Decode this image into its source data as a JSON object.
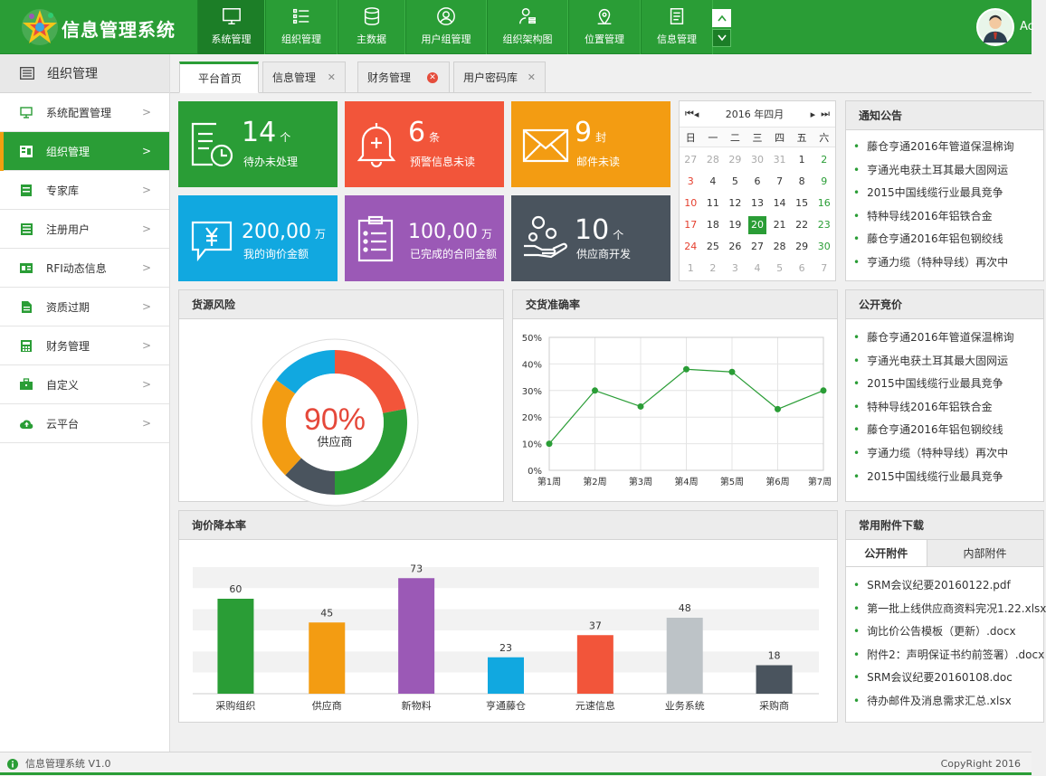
{
  "app": {
    "title": "信息管理系统",
    "user_initial": "Ac"
  },
  "nav": [
    {
      "label": "系统管理",
      "icon": "monitor-icon"
    },
    {
      "label": "组织管理",
      "icon": "list-icon"
    },
    {
      "label": "主数据",
      "icon": "database-icon"
    },
    {
      "label": "用户组管理",
      "icon": "user-circle-icon"
    },
    {
      "label": "组织架构图",
      "icon": "org-user-icon"
    },
    {
      "label": "位置管理",
      "icon": "location-icon"
    },
    {
      "label": "信息管理",
      "icon": "document-icon"
    }
  ],
  "sidebar": {
    "header": "组织管理",
    "items": [
      {
        "label": "系统配置管理",
        "icon": "monitor-icon"
      },
      {
        "label": "组织管理",
        "icon": "org-icon"
      },
      {
        "label": "专家库",
        "icon": "book-icon"
      },
      {
        "label": "注册用户",
        "icon": "list-icon"
      },
      {
        "label": "RFI动态信息",
        "icon": "card-icon"
      },
      {
        "label": "资质过期",
        "icon": "file-icon"
      },
      {
        "label": "财务管理",
        "icon": "calculator-icon"
      },
      {
        "label": "自定义",
        "icon": "toolbox-icon"
      },
      {
        "label": "云平台",
        "icon": "cloud-upload-icon"
      }
    ]
  },
  "tabs": [
    {
      "label": "平台首页"
    },
    {
      "label": "信息管理"
    },
    {
      "label": "财务管理"
    },
    {
      "label": "用户密码库"
    }
  ],
  "tiles": [
    {
      "value": "14",
      "unit": "个",
      "sub": "待办未处理",
      "color": "#2a9d36"
    },
    {
      "value": "6",
      "unit": "条",
      "sub": "预警信息未读",
      "color": "#f2553a"
    },
    {
      "value": "9",
      "unit": "封",
      "sub": "邮件未读",
      "color": "#f39c12"
    },
    {
      "value": "200,00",
      "unit": "万",
      "sub": "我的询价金额",
      "color": "#11a8e0"
    },
    {
      "value": "100,00",
      "unit": "万",
      "sub": "已完成的合同金额",
      "color": "#9b59b6"
    },
    {
      "value": "10",
      "unit": "个",
      "sub": "供应商开发",
      "color": "#4a545e"
    }
  ],
  "calendar": {
    "title": "2016 年四月",
    "weekdays": [
      "日",
      "一",
      "二",
      "三",
      "四",
      "五",
      "六"
    ],
    "days": [
      [
        "27",
        "28",
        "29",
        "30",
        "31",
        "1",
        "2"
      ],
      [
        "3",
        "4",
        "5",
        "6",
        "7",
        "8",
        "9"
      ],
      [
        "10",
        "11",
        "12",
        "13",
        "14",
        "15",
        "16"
      ],
      [
        "17",
        "18",
        "19",
        "20",
        "21",
        "22",
        "23"
      ],
      [
        "24",
        "25",
        "26",
        "27",
        "28",
        "29",
        "30"
      ],
      [
        "1",
        "2",
        "3",
        "4",
        "5",
        "6",
        "7"
      ]
    ],
    "today": "20"
  },
  "notice": {
    "title": "通知公告",
    "items": [
      "藤仓亨通2016年管道保温棉询",
      "亨通光电获土耳其最大固网运",
      "2015中国线缆行业最具竞争",
      "特种导线2016年铝铁合金",
      "藤仓亨通2016年铝包钢绞线",
      "亨通力缆（特种导线）再次中"
    ]
  },
  "bidding": {
    "title": "公开竞价",
    "items": [
      "藤仓亨通2016年管道保温棉询",
      "亨通光电获土耳其最大固网运",
      "2015中国线缆行业最具竞争",
      "特种导线2016年铝铁合金",
      "藤仓亨通2016年铝包钢绞线",
      "亨通力缆（特种导线）再次中",
      "2015中国线缆行业最具竞争"
    ]
  },
  "attachments": {
    "title": "常用附件下载",
    "tab_public": "公开附件",
    "tab_internal": "内部附件",
    "items": [
      "SRM会议纪要20160122.pdf",
      "第一批上线供应商资料完况1.22.xlsx",
      "询比价公告模板（更新）.docx",
      "附件2：声明保证书约前签署）.docx",
      "SRM会议纪要20160108.doc",
      "待办邮件及消息需求汇总.xlsx"
    ]
  },
  "donut": {
    "title": "货源风险",
    "center_value": "90%",
    "center_label": "供应商",
    "segments": [
      {
        "value": 22,
        "color": "#f2553a"
      },
      {
        "value": 28,
        "color": "#2a9d36"
      },
      {
        "value": 12,
        "color": "#4a545e"
      },
      {
        "value": 23,
        "color": "#f39c12"
      },
      {
        "value": 15,
        "color": "#11a8e0"
      }
    ]
  },
  "chart_data": [
    {
      "type": "line",
      "title": "交货准确率",
      "x": [
        "第1周",
        "第2周",
        "第3周",
        "第4周",
        "第5周",
        "第6周",
        "第7周"
      ],
      "series": [
        {
          "values": [
            10,
            30,
            24,
            38,
            37,
            23,
            30
          ],
          "color": "#2a9d36"
        }
      ],
      "ylim": [
        0,
        50
      ],
      "yticks": [
        "0%",
        "10%",
        "20%",
        "30%",
        "40%",
        "50%"
      ],
      "grid": true
    },
    {
      "type": "bar",
      "title": "询价降本率",
      "categories": [
        "采购组织",
        "供应商",
        "新物料",
        "亨通藤仓",
        "元速信息",
        "业务系统",
        "采购商"
      ],
      "values": [
        60,
        45,
        73,
        23,
        37,
        48,
        18
      ],
      "colors": [
        "#2a9d36",
        "#f39c12",
        "#9b59b6",
        "#11a8e0",
        "#f2553a",
        "#bdc3c7",
        "#4a545e"
      ],
      "ylim": [
        0,
        80
      ]
    }
  ],
  "footer": {
    "version": "信息管理系统 V1.0",
    "copyright": "CopyRight 2016"
  }
}
